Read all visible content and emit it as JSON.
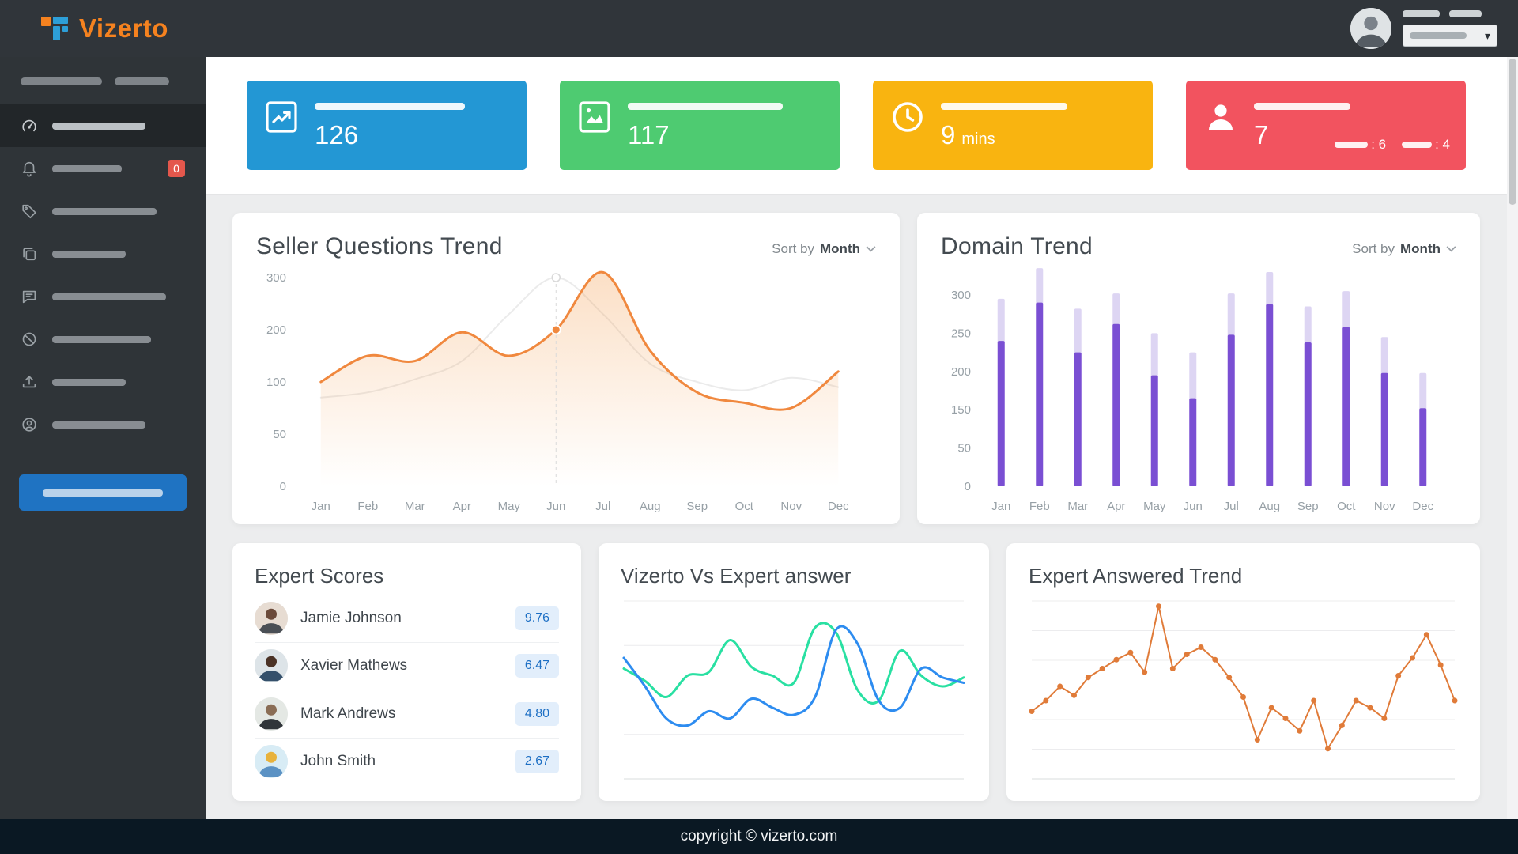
{
  "brand": {
    "name": "Vizerto"
  },
  "sidebar": {
    "items": [
      {
        "icon": "dashboard-gauge-icon",
        "active": true
      },
      {
        "icon": "bell-icon",
        "badge": "0"
      },
      {
        "icon": "tag-icon"
      },
      {
        "icon": "copy-icon"
      },
      {
        "icon": "chat-icon"
      },
      {
        "icon": "slash-circle-icon"
      },
      {
        "icon": "upload-icon"
      },
      {
        "icon": "user-circle-icon"
      }
    ]
  },
  "stats": {
    "cards": [
      {
        "value": "126",
        "unit": "",
        "color": "#2397d4",
        "icon": "trend-chart-icon"
      },
      {
        "value": "117",
        "unit": "",
        "color": "#4ecb71",
        "icon": "image-chart-icon"
      },
      {
        "value": "9",
        "unit": "mins",
        "color": "#f9b410",
        "icon": "clock-icon"
      },
      {
        "value": "7",
        "unit": "",
        "color": "#f2535f",
        "icon": "person-icon",
        "extras": [
          ": 6",
          ": 4"
        ]
      }
    ]
  },
  "seller_card": {
    "title": "Seller Questions Trend",
    "sort_label": "Sort by",
    "sort_value": "Month"
  },
  "domain_card": {
    "title": "Domain Trend",
    "sort_label": "Sort by",
    "sort_value": "Month"
  },
  "expert_scores": {
    "title": "Expert Scores",
    "rows": [
      {
        "name": "Jamie Johnson",
        "score": "9.76"
      },
      {
        "name": "Xavier Mathews",
        "score": "6.47"
      },
      {
        "name": "Mark Andrews",
        "score": "4.80"
      },
      {
        "name": "John Smith",
        "score": "2.67"
      }
    ]
  },
  "vs_card": {
    "title": "Vizerto Vs Expert answer"
  },
  "answered_card": {
    "title": "Expert Answered Trend"
  },
  "footer": {
    "text": "copyright © vizerto.com"
  },
  "chart_data": [
    {
      "id": "seller",
      "type": "line",
      "title": "Seller Questions Trend",
      "x_labels": [
        "Jan",
        "Feb",
        "Mar",
        "Apr",
        "May",
        "Jun",
        "Jul",
        "Aug",
        "Sep",
        "Oct",
        "Nov",
        "Dec"
      ],
      "y_ticks": [
        0,
        50,
        100,
        200,
        300
      ],
      "hover_index": 5,
      "series": [
        {
          "name": "previous",
          "color": "#ebebeb",
          "width": 2,
          "values": [
            85,
            90,
            105,
            140,
            230,
            300,
            230,
            135,
            100,
            92,
            108,
            95
          ]
        },
        {
          "name": "questions",
          "color": "#f0883e",
          "width": 3,
          "fill": "#f39c4d",
          "values": [
            100,
            150,
            140,
            195,
            150,
            200,
            310,
            160,
            90,
            80,
            75,
            120
          ]
        }
      ]
    },
    {
      "id": "domain",
      "type": "bar",
      "title": "Domain Trend",
      "x_labels": [
        "Jan",
        "Feb",
        "Mar",
        "Apr",
        "May",
        "Jun",
        "Jul",
        "Aug",
        "Sep",
        "Oct",
        "Nov",
        "Dec"
      ],
      "y_ticks": [
        0,
        50,
        150,
        200,
        250,
        300
      ],
      "pad_top": 36,
      "bar_color": "#7a4fd3",
      "cap_color": "#ddd5f3",
      "values": [
        240,
        290,
        225,
        262,
        195,
        165,
        248,
        288,
        238,
        258,
        198,
        152
      ],
      "cap_values": [
        295,
        335,
        282,
        302,
        250,
        225,
        302,
        330,
        285,
        305,
        245,
        198
      ]
    },
    {
      "id": "vs",
      "type": "multiline",
      "title": "Vizerto Vs Expert answer",
      "gridlines": 5,
      "y_max": 100,
      "series": [
        {
          "name": "vizerto",
          "color": "#29e0a2",
          "width": 3,
          "values": [
            62,
            55,
            46,
            58,
            60,
            78,
            63,
            58,
            54,
            85,
            82,
            50,
            44,
            72,
            58,
            52,
            57
          ]
        },
        {
          "name": "expert",
          "color": "#2d8cf0",
          "width": 3,
          "values": [
            68,
            52,
            34,
            30,
            38,
            34,
            45,
            40,
            36,
            46,
            84,
            76,
            44,
            40,
            62,
            57,
            54
          ]
        }
      ]
    },
    {
      "id": "answered",
      "type": "line-markers",
      "title": "Expert Answered Trend",
      "gridlines": 7,
      "y_max": 100,
      "color": "#e07b39",
      "values": [
        38,
        44,
        52,
        47,
        57,
        62,
        67,
        71,
        60,
        97,
        62,
        70,
        74,
        67,
        57,
        46,
        22,
        40,
        34,
        27,
        44,
        17,
        30,
        44,
        40,
        34,
        58,
        68,
        81,
        64,
        44
      ]
    }
  ]
}
